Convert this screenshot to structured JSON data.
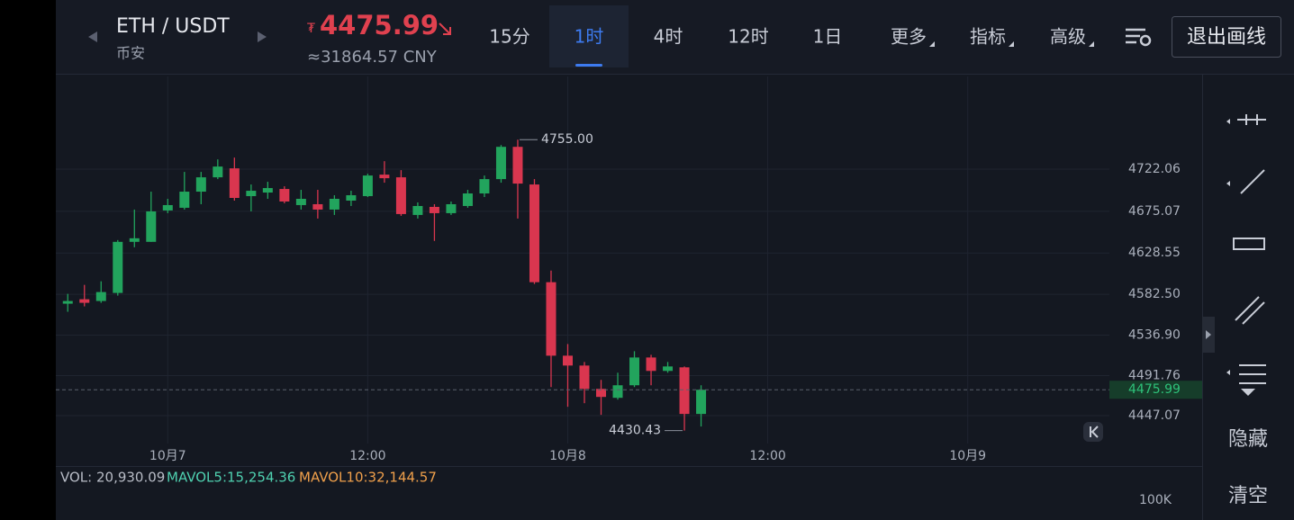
{
  "header": {
    "pair": "ETH / USDT",
    "exchange": "币安",
    "price_prefix": "₮",
    "price": "4475.99",
    "cny": "≈31864.57 CNY",
    "tabs": [
      "15分",
      "1时",
      "4时",
      "12时",
      "1日",
      "更多",
      "指标",
      "高级"
    ],
    "active_tab": 1,
    "exit_button": "退出画线"
  },
  "side_tools": {
    "hide": "隐藏",
    "clear": "清空"
  },
  "volume": {
    "vol": "VOL: 20,930.09",
    "mavol5": "MAVOL5:15,254.36",
    "mavol10": "MAVOL10:32,144.57",
    "ytick": "100K"
  },
  "chart_data": {
    "type": "candlestick",
    "categories": [
      null,
      null,
      null,
      null,
      null,
      null,
      "10月7",
      null,
      null,
      null,
      null,
      null,
      null,
      null,
      null,
      null,
      null,
      null,
      "12:00",
      null,
      null,
      null,
      null,
      null,
      null,
      null,
      null,
      null,
      null,
      null,
      "10月8",
      null,
      null,
      null,
      null,
      null,
      null,
      null,
      null,
      null,
      null,
      null,
      "12:00",
      null,
      null,
      null,
      null,
      null,
      null,
      null,
      null,
      null,
      null,
      null,
      "10月9",
      null,
      null,
      null,
      null,
      null,
      null,
      null,
      null
    ],
    "open": [
      4572,
      4577,
      4575,
      4584,
      4641,
      4641,
      4676,
      4679,
      4697,
      4713,
      4723,
      4692,
      4696,
      4700,
      4682,
      4683,
      4677,
      4687,
      4692,
      4716,
      4713,
      4671,
      4680,
      4673,
      4681,
      4695,
      4711,
      4747,
      4705,
      4596,
      4514,
      4503,
      4477,
      4467,
      4481,
      4512,
      4497,
      4501,
      4449,
      null,
      null,
      null,
      null,
      null,
      null,
      null,
      null,
      null,
      null,
      null,
      null,
      null,
      null,
      null,
      null,
      null,
      null,
      null,
      null,
      null,
      null,
      null,
      null
    ],
    "high": [
      4583,
      4593,
      4597,
      4643,
      4677,
      4697,
      4689,
      4719,
      4719,
      4733,
      4735,
      4705,
      4708,
      4703,
      4699,
      4699,
      4693,
      4698,
      4717,
      4731,
      4721,
      4685,
      4683,
      4686,
      4699,
      4715,
      4749,
      4755,
      4711,
      4609,
      4527,
      4507,
      4487,
      4495,
      4519,
      4515,
      4507,
      4502,
      4481,
      null,
      null,
      null,
      null,
      null,
      null,
      null,
      null,
      null,
      null,
      null,
      null,
      null,
      null,
      null,
      null,
      null,
      null,
      null,
      null,
      null,
      null,
      null,
      null
    ],
    "low": [
      4563,
      4569,
      4573,
      4581,
      4635,
      4641,
      4673,
      4677,
      4683,
      4711,
      4687,
      4675,
      4689,
      4684,
      4677,
      4667,
      4671,
      4681,
      4691,
      4707,
      4670,
      4667,
      4642,
      4671,
      4679,
      4691,
      4707,
      4667,
      4594,
      4479,
      4457,
      4461,
      4448,
      4465,
      4479,
      4481,
      4495,
      4430.43,
      4435,
      null,
      null,
      null,
      null,
      null,
      null,
      null,
      null,
      null,
      null,
      null,
      null,
      null,
      null,
      null,
      null,
      null,
      null,
      null,
      null,
      null,
      null,
      null,
      null
    ],
    "close": [
      4575,
      4573,
      4585,
      4641,
      4645,
      4675,
      4682,
      4697,
      4713,
      4725,
      4690,
      4698,
      4701,
      4686,
      4689,
      4677,
      4689,
      4693,
      4715,
      4712,
      4672,
      4681,
      4673,
      4683,
      4695,
      4711,
      4747,
      4706,
      4596,
      4514,
      4503,
      4477,
      4468,
      4481,
      4512,
      4497,
      4502,
      4449,
      4475.99,
      null,
      null,
      null,
      null,
      null,
      null,
      null,
      null,
      null,
      null,
      null,
      null,
      null,
      null,
      null,
      null,
      null,
      null,
      null,
      null,
      null,
      null,
      null,
      null
    ],
    "up_color": "#22a45d",
    "down_color": "#d9364f",
    "ylim": [
      4416,
      4825.5
    ],
    "yticks": [
      4722.06,
      4675.07,
      4628.55,
      {
        "value": 4582.5,
        "label": "4582.50"
      },
      {
        "value": 4536.9,
        "label": "4536.90"
      },
      4491.76,
      4447.07
    ],
    "grid": true,
    "last_price": 4475.99,
    "annotations": [
      {
        "value": 4755,
        "label": "4755.00"
      },
      {
        "value": 4430.43,
        "label": "4430.43"
      }
    ]
  }
}
